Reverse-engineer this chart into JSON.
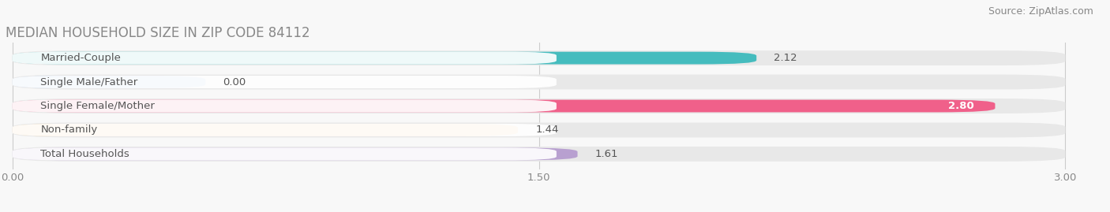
{
  "title": "MEDIAN HOUSEHOLD SIZE IN ZIP CODE 84112",
  "source": "Source: ZipAtlas.com",
  "categories": [
    "Married-Couple",
    "Single Male/Father",
    "Single Female/Mother",
    "Non-family",
    "Total Households"
  ],
  "values": [
    2.12,
    0.0,
    2.8,
    1.44,
    1.61
  ],
  "bar_colors": [
    "#45BCBE",
    "#A8C4E8",
    "#F0608A",
    "#F5C98A",
    "#B8A0D0"
  ],
  "xlim_max": 3.0,
  "xticks": [
    0.0,
    1.5,
    3.0
  ],
  "xtick_labels": [
    "0.00",
    "1.50",
    "3.00"
  ],
  "label_fontsize": 9.5,
  "value_fontsize": 9.5,
  "title_fontsize": 12,
  "source_fontsize": 9,
  "background_color": "#F8F8F8",
  "bar_bg_color": "#E8E8E8",
  "single_male_display_val": 0.55
}
